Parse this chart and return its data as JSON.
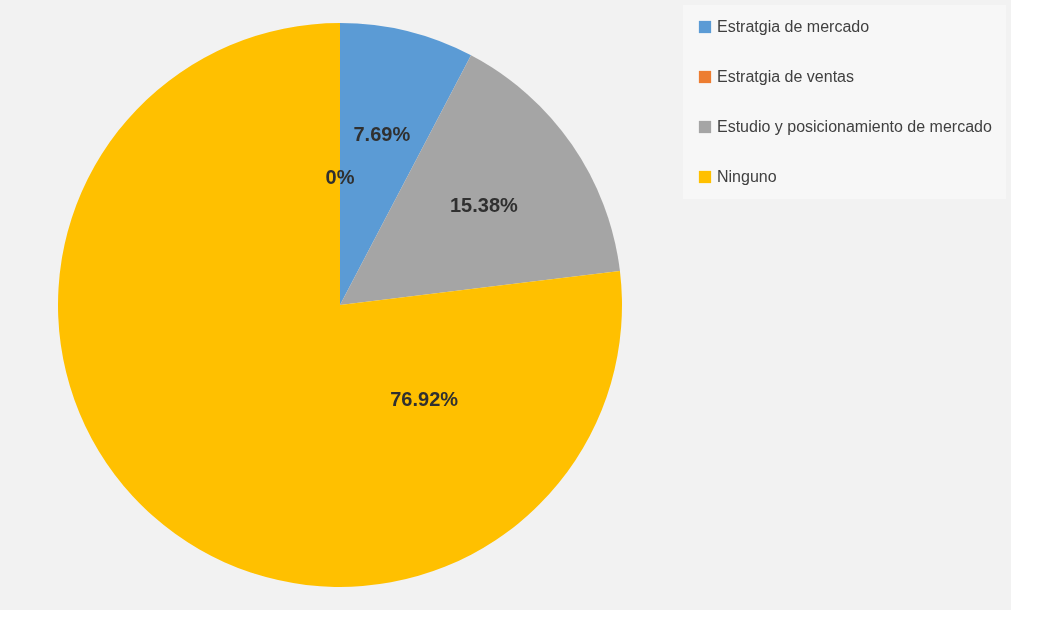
{
  "chart_data": {
    "type": "pie",
    "categories": [
      "Estratgia de mercado",
      "Estratgia de ventas",
      "Estudio y posicionamiento de mercado",
      "Ninguno"
    ],
    "values": [
      7.69,
      0,
      15.38,
      76.92
    ],
    "colors": [
      "#5b9bd5",
      "#ed7d31",
      "#a5a5a5",
      "#ffc000"
    ],
    "value_labels": [
      "7.69%",
      "0%",
      "15.38%",
      "76.92%"
    ],
    "legend": "right"
  }
}
